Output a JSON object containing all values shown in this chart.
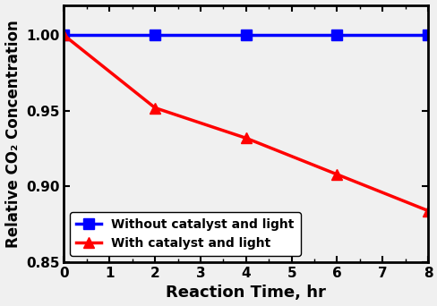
{
  "blue_x": [
    0,
    2,
    4,
    6,
    8
  ],
  "blue_y": [
    1.0,
    1.0,
    1.0,
    1.0,
    1.0
  ],
  "red_x": [
    0,
    2,
    4,
    6,
    8
  ],
  "red_y": [
    1.0,
    0.952,
    0.932,
    0.908,
    0.884
  ],
  "blue_color": "#0000ff",
  "red_color": "#ff0000",
  "xlabel": "Reaction Time, hr",
  "ylabel": "Relative CO₂ Concentration",
  "xlim": [
    0,
    8
  ],
  "ylim": [
    0.85,
    1.02
  ],
  "yticks": [
    0.85,
    0.9,
    0.95,
    1.0
  ],
  "xticks": [
    0,
    1,
    2,
    3,
    4,
    5,
    6,
    7,
    8
  ],
  "legend1": "Without catalyst and light",
  "legend2": "With catalyst and light",
  "linewidth": 2.5,
  "markersize": 8,
  "xlabel_fontsize": 13,
  "ylabel_fontsize": 12,
  "tick_fontsize": 11,
  "legend_fontsize": 10,
  "bg_color": "#f0f0f0"
}
